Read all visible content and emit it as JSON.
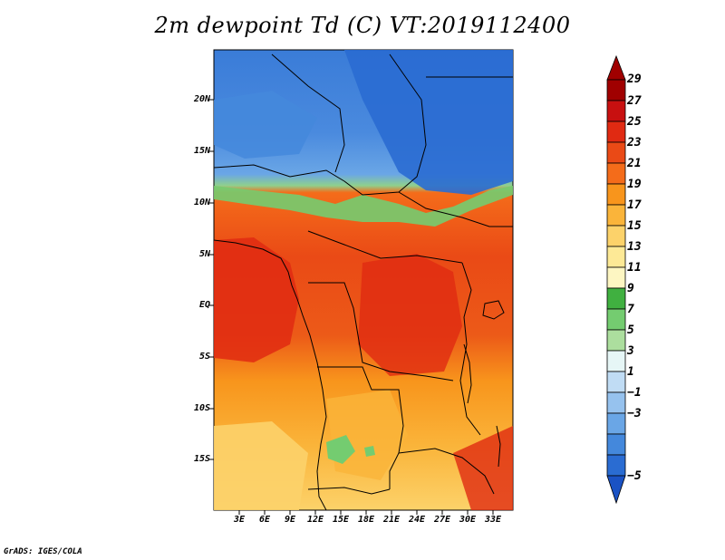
{
  "title": "2m dewpoint Td (C) VT:2019112400",
  "credit": "GrADS: IGES/COLA",
  "lat_labels": [
    "20N",
    "15N",
    "10N",
    "5N",
    "EQ",
    "5S",
    "10S",
    "15S"
  ],
  "lon_labels": [
    "3E",
    "6E",
    "9E",
    "12E",
    "15E",
    "18E",
    "21E",
    "24E",
    "27E",
    "30E",
    "33E"
  ],
  "colorbar": {
    "labels": [
      "29",
      "27",
      "25",
      "23",
      "21",
      "19",
      "17",
      "15",
      "13",
      "11",
      "9",
      "7",
      "5",
      "3",
      "1",
      "−1",
      "−3",
      "−5"
    ],
    "colors": [
      "#a00000",
      "#c81010",
      "#e02a12",
      "#ea4a16",
      "#f46c1a",
      "#f8951c",
      "#fab43a",
      "#fcd26a",
      "#fde996",
      "#fdf6c2",
      "#40b040",
      "#74cc70",
      "#acde9e",
      "#e6f6f6",
      "#c0dcf4",
      "#96c2ee",
      "#6aa6e6",
      "#4488dc",
      "#2a6cd2",
      "#1a52c4"
    ]
  },
  "field_colors": {
    "very_dry": "#2a6cd2",
    "dry": "#4488dc",
    "mid_dry": "#6aa6e6",
    "transition": "#74cc70",
    "warm": "#f46c1a",
    "hot": "#ea4a16",
    "very_hot": "#e02a12",
    "mild": "#fab43a",
    "cool": "#fcd26a"
  }
}
